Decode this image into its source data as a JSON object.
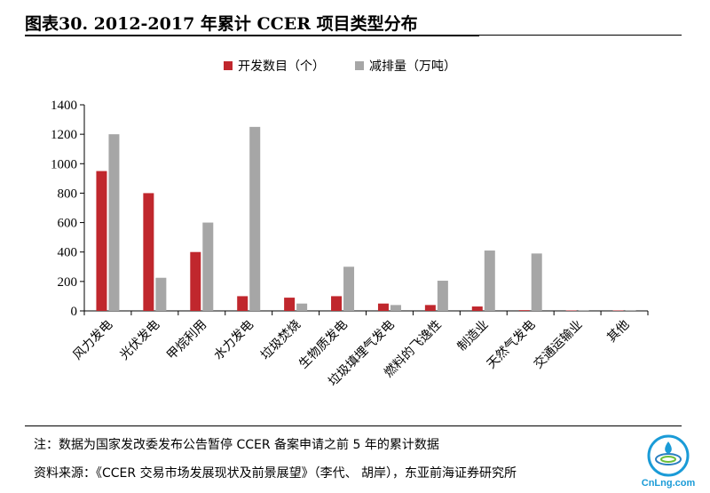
{
  "header": {
    "title": "图表30. 2012-2017 年累计 CCER 项目类型分布"
  },
  "chart_data": {
    "type": "bar",
    "categories": [
      "风力发电",
      "光伏发电",
      "甲烷利用",
      "水力发电",
      "垃圾焚烧",
      "生物质发电",
      "垃圾填埋气发电",
      "燃料的飞逸性",
      "制造业",
      "天然气发电",
      "交通运输业",
      "其他"
    ],
    "series": [
      {
        "name": "开发数目（个）",
        "color": "#c0272d",
        "values": [
          950,
          800,
          400,
          100,
          90,
          100,
          50,
          40,
          30,
          5,
          3,
          3
        ]
      },
      {
        "name": "减排量（万吨）",
        "color": "#a6a6a6",
        "values": [
          1200,
          225,
          600,
          1250,
          50,
          300,
          40,
          205,
          410,
          390,
          5,
          5
        ]
      }
    ],
    "yticks": [
      0,
      200,
      400,
      600,
      800,
      1000,
      1200,
      1400
    ],
    "ylim": [
      0,
      1400
    ],
    "legend_position": "top-center",
    "grid": false
  },
  "footer": {
    "note": "注：数据为国家发改委发布公告暂停 CCER 备案申请之前 5 年的累计数据",
    "source": "资料来源：《CCER 交易市场发展现状及前景展望》（李代、 胡岸），东亚前海证券研究所"
  },
  "logo": {
    "text": "CnLng.com",
    "color": "#1a9bd7"
  }
}
